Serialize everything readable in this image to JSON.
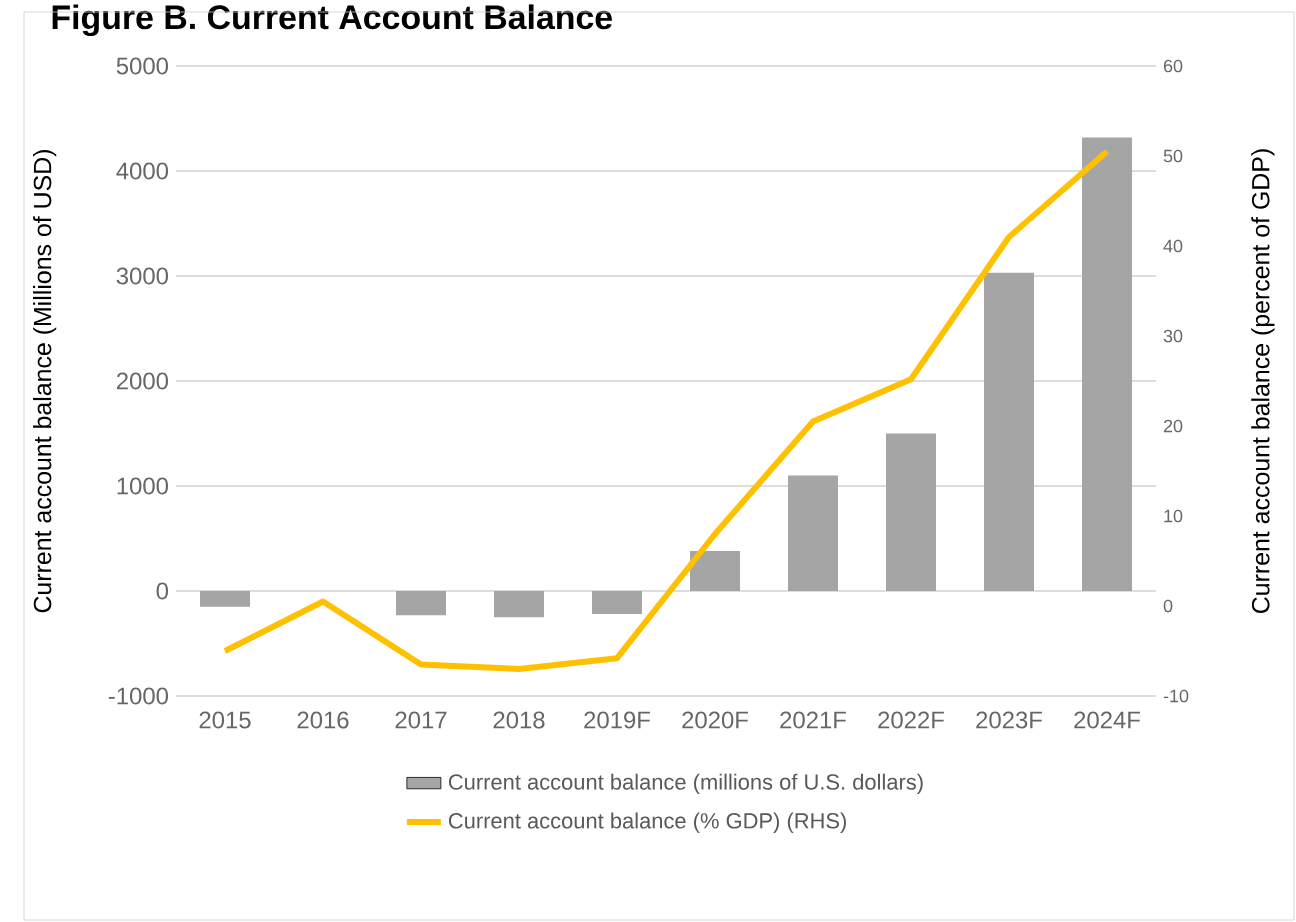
{
  "chart_data": {
    "type": "bar",
    "title": "Figure B. Current Account Balance",
    "categories": [
      "2015",
      "2016",
      "2017",
      "2018",
      "2019F",
      "2020F",
      "2021F",
      "2022F",
      "2023F",
      "2024F"
    ],
    "series": [
      {
        "name": "Current account balance (millions of U.S. dollars)",
        "color": "#a5a5a5",
        "values": [
          -150,
          0,
          -230,
          -250,
          -220,
          380,
          1100,
          1500,
          3030,
          4320
        ]
      },
      {
        "name": "Current account balance (% GDP) (RHS)",
        "type": "line",
        "axis": "y2",
        "color": "#ffc000",
        "values": [
          -5,
          0.5,
          -6.5,
          -7,
          -5.8,
          8,
          20.5,
          25.2,
          41,
          50.5
        ]
      }
    ],
    "ylabel": "Current account balance (Millions of USD)",
    "y2label": "Current account balance (percent of GDP)",
    "ylim": [
      -1000,
      5000
    ],
    "yticks": [
      -1000,
      0,
      1000,
      2000,
      3000,
      4000,
      5000
    ],
    "y2lim": [
      -10,
      60
    ],
    "y2ticks": [
      -10,
      0,
      10,
      20,
      30,
      40,
      50,
      60
    ],
    "grid": "y",
    "legend": "bottom",
    "marker": "none",
    "line_style": "solid"
  }
}
